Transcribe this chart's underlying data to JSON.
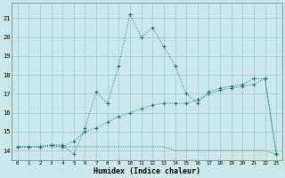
{
  "xlabel": "Humidex (Indice chaleur)",
  "background_color": "#cce8e8",
  "line_color": "#1a7a6e",
  "grid_color": "#aacfcf",
  "xlim": [
    -0.5,
    23.5
  ],
  "ylim": [
    13.5,
    21.8
  ],
  "yticks": [
    14,
    15,
    16,
    17,
    18,
    19,
    20,
    21
  ],
  "xticks": [
    0,
    1,
    2,
    3,
    4,
    5,
    6,
    7,
    8,
    9,
    10,
    11,
    12,
    13,
    14,
    15,
    16,
    17,
    18,
    19,
    20,
    21,
    22,
    23
  ],
  "series1_x": [
    0,
    1,
    2,
    3,
    4,
    5,
    6,
    7,
    8,
    9,
    10,
    11,
    12,
    13,
    14,
    15,
    16,
    17,
    18,
    19,
    20,
    21,
    22,
    23
  ],
  "series1_y": [
    14.2,
    14.2,
    14.2,
    14.2,
    14.2,
    14.2,
    14.2,
    14.2,
    14.2,
    14.2,
    14.2,
    14.2,
    14.2,
    14.2,
    14.0,
    14.0,
    14.0,
    14.0,
    14.0,
    14.0,
    14.0,
    14.0,
    14.0,
    13.8
  ],
  "series2_x": [
    0,
    1,
    2,
    3,
    4,
    5,
    6,
    7,
    8,
    9,
    10,
    11,
    12,
    13,
    14,
    15,
    16,
    17,
    18,
    19,
    20,
    21,
    22,
    23
  ],
  "series2_y": [
    14.2,
    14.2,
    14.2,
    14.3,
    14.3,
    13.8,
    15.2,
    17.1,
    16.5,
    18.5,
    21.2,
    20.0,
    20.5,
    19.5,
    18.5,
    17.0,
    16.5,
    17.1,
    17.3,
    17.4,
    17.5,
    17.8,
    17.8,
    13.8
  ],
  "series3_x": [
    0,
    1,
    2,
    3,
    4,
    5,
    6,
    7,
    8,
    9,
    10,
    11,
    12,
    13,
    14,
    15,
    16,
    17,
    18,
    19,
    20,
    21,
    22,
    23
  ],
  "series3_y": [
    14.2,
    14.2,
    14.2,
    14.3,
    14.2,
    14.5,
    15.0,
    15.2,
    15.5,
    15.8,
    16.0,
    16.2,
    16.4,
    16.5,
    16.5,
    16.5,
    16.7,
    17.0,
    17.2,
    17.3,
    17.4,
    17.5,
    17.8,
    13.8
  ]
}
